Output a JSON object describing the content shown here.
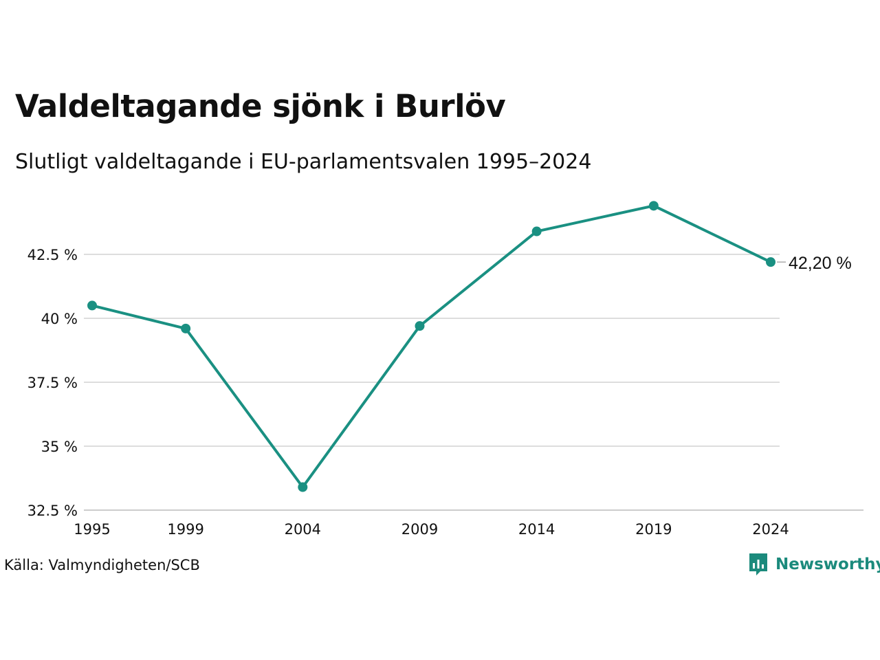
{
  "header": {
    "title": "Valdeltagande sjönk i Burlöv",
    "subtitle": "Slutligt valdeltagande i EU-parlamentsvalen 1995–2024"
  },
  "footer": {
    "source": "Källa: Valmyndigheten/SCB",
    "brand": "Newsworthy",
    "brand_icon": "newsworthy-logo-icon"
  },
  "colors": {
    "line": "#1a9082",
    "grid": "#dddddd",
    "brand": "#1b8a7c"
  },
  "chart_data": {
    "type": "line",
    "title": "Valdeltagande sjönk i Burlöv",
    "subtitle": "Slutligt valdeltagande i EU-parlamentsvalen 1995–2024",
    "categories": [
      "1995",
      "1999",
      "2004",
      "2009",
      "2014",
      "2019",
      "2024"
    ],
    "series": [
      {
        "values": [
          40.5,
          39.6,
          33.4,
          39.7,
          43.4,
          44.4,
          42.2
        ]
      }
    ],
    "y_ticks": [
      32.5,
      35,
      37.5,
      40,
      42.5
    ],
    "y_tick_labels": [
      "32.5 %",
      "35 %",
      "37.5 %",
      "40 %",
      "42.5 %"
    ],
    "ylim": [
      32.5,
      44.5
    ],
    "end_label": "42,20 %",
    "grid": true,
    "legend": "none"
  }
}
